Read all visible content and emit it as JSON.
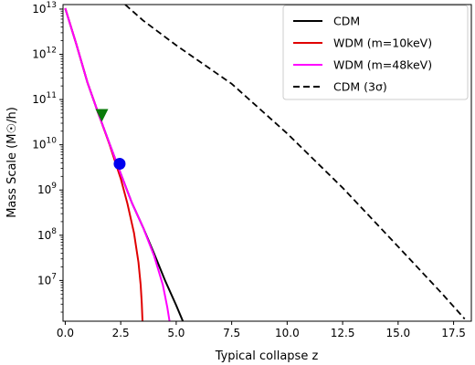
{
  "chart_data": {
    "type": "line",
    "xlabel": "Typical collapse z",
    "ylabel": "Mass Scale (M☉/h)",
    "xlim": [
      -0.1,
      18.3
    ],
    "ylim_log10": [
      6.1,
      13.1
    ],
    "yscale": "log",
    "grid": false,
    "legend_position": "top-right",
    "x_ticks": [
      {
        "value": 0.0,
        "label": "0.0"
      },
      {
        "value": 2.5,
        "label": "2.5"
      },
      {
        "value": 5.0,
        "label": "5.0"
      },
      {
        "value": 7.5,
        "label": "7.5"
      },
      {
        "value": 10.0,
        "label": "10.0"
      },
      {
        "value": 12.5,
        "label": "12.5"
      },
      {
        "value": 15.0,
        "label": "15.0"
      },
      {
        "value": 17.5,
        "label": "17.5"
      }
    ],
    "y_ticks": [
      {
        "exp": 7,
        "base": "10",
        "sup": "7"
      },
      {
        "exp": 8,
        "base": "10",
        "sup": "8"
      },
      {
        "exp": 9,
        "base": "10",
        "sup": "9"
      },
      {
        "exp": 10,
        "base": "10",
        "sup": "10"
      },
      {
        "exp": 11,
        "base": "10",
        "sup": "11"
      },
      {
        "exp": 12,
        "base": "10",
        "sup": "12"
      },
      {
        "exp": 13,
        "base": "10",
        "sup": "13"
      }
    ],
    "series": [
      {
        "name": "CDM",
        "color": "#000000",
        "dash": "solid",
        "points": [
          [
            0.0,
            13.02
          ],
          [
            0.5,
            12.22
          ],
          [
            1.0,
            11.38
          ],
          [
            1.5,
            10.68
          ],
          [
            2.0,
            10.02
          ],
          [
            2.5,
            9.36
          ],
          [
            3.0,
            8.72
          ],
          [
            3.5,
            8.18
          ],
          [
            4.0,
            7.6
          ],
          [
            4.5,
            7.0
          ],
          [
            5.0,
            6.45
          ],
          [
            5.3,
            6.1
          ]
        ]
      },
      {
        "name": "WDM (m=10keV)",
        "color": "#e00000",
        "dash": "solid",
        "points": [
          [
            0.0,
            13.02
          ],
          [
            0.5,
            12.22
          ],
          [
            1.0,
            11.38
          ],
          [
            1.5,
            10.68
          ],
          [
            2.0,
            10.0
          ],
          [
            2.5,
            9.25
          ],
          [
            2.8,
            8.7
          ],
          [
            3.1,
            8.05
          ],
          [
            3.3,
            7.4
          ],
          [
            3.4,
            6.9
          ],
          [
            3.45,
            6.5
          ],
          [
            3.48,
            6.1
          ]
        ]
      },
      {
        "name": "WDM (m=48keV)",
        "color": "#ff00ff",
        "dash": "solid",
        "points": [
          [
            0.0,
            13.02
          ],
          [
            0.5,
            12.22
          ],
          [
            1.0,
            11.38
          ],
          [
            1.5,
            10.68
          ],
          [
            2.0,
            10.02
          ],
          [
            2.5,
            9.36
          ],
          [
            3.0,
            8.72
          ],
          [
            3.5,
            8.18
          ],
          [
            4.0,
            7.55
          ],
          [
            4.4,
            6.9
          ],
          [
            4.6,
            6.4
          ],
          [
            4.7,
            6.1
          ]
        ]
      },
      {
        "name": "CDM (3σ)",
        "color": "#000000",
        "dash": "dashed",
        "points": [
          [
            2.7,
            13.1
          ],
          [
            3.5,
            12.75
          ],
          [
            5.0,
            12.2
          ],
          [
            7.5,
            11.35
          ],
          [
            10.0,
            10.25
          ],
          [
            12.5,
            9.05
          ],
          [
            15.0,
            7.75
          ],
          [
            17.0,
            6.7
          ],
          [
            18.0,
            6.15
          ]
        ]
      }
    ],
    "markers": [
      {
        "shape": "triangle-down",
        "color": "#0a7a0a",
        "x": 1.65,
        "y_log10": 10.65
      },
      {
        "shape": "circle",
        "color": "#0000ee",
        "x": 2.45,
        "y_log10": 9.58
      }
    ]
  }
}
